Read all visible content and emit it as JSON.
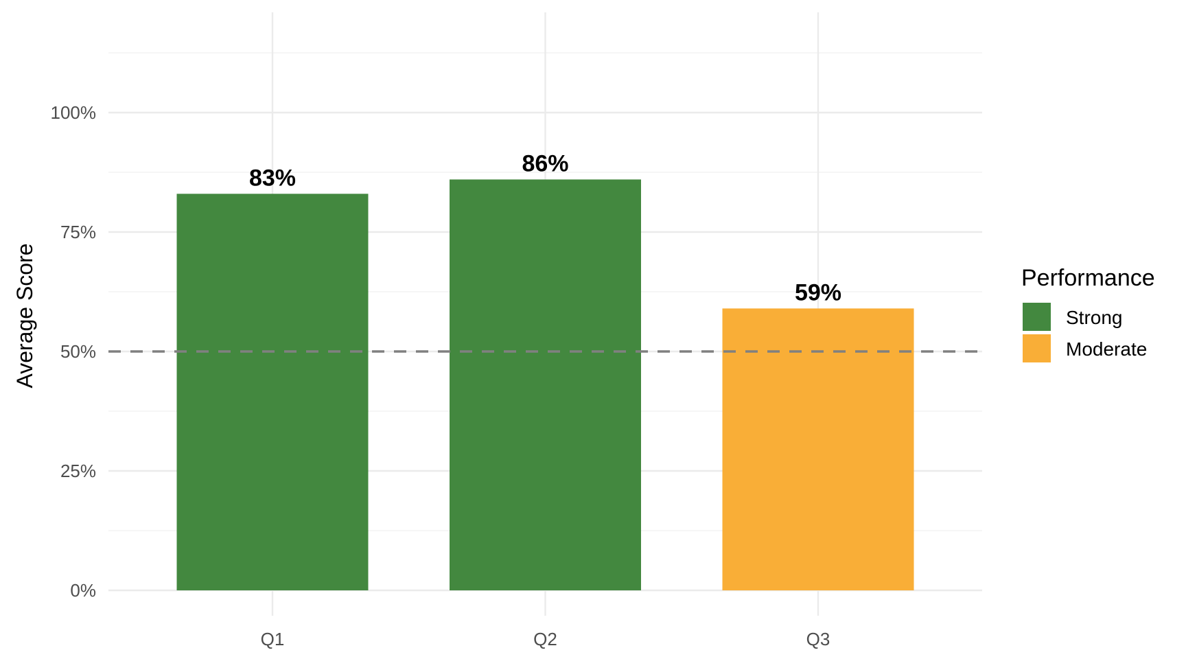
{
  "chart_data": {
    "type": "bar",
    "title": "",
    "xlabel": "",
    "ylabel": "Average Score",
    "categories": [
      "Q1",
      "Q2",
      "Q3"
    ],
    "values": [
      0.83,
      0.86,
      0.59
    ],
    "data_labels": [
      "83%",
      "86%",
      "59%"
    ],
    "groups": [
      "Strong",
      "Strong",
      "Moderate"
    ],
    "ylim": [
      0,
      1.17
    ],
    "yticks": [
      0,
      0.25,
      0.5,
      0.75,
      1.0
    ],
    "ytick_labels": [
      "0%",
      "25%",
      "50%",
      "75%",
      "100%"
    ],
    "reference_line": {
      "y": 0.5,
      "style": "dashed",
      "color": "#808080"
    },
    "grid": true,
    "legend": {
      "title": "Performance",
      "placement": "right",
      "entries": [
        {
          "label": "Strong",
          "color": "#43883F"
        },
        {
          "label": "Moderate",
          "color": "#F9AE37"
        }
      ]
    }
  }
}
